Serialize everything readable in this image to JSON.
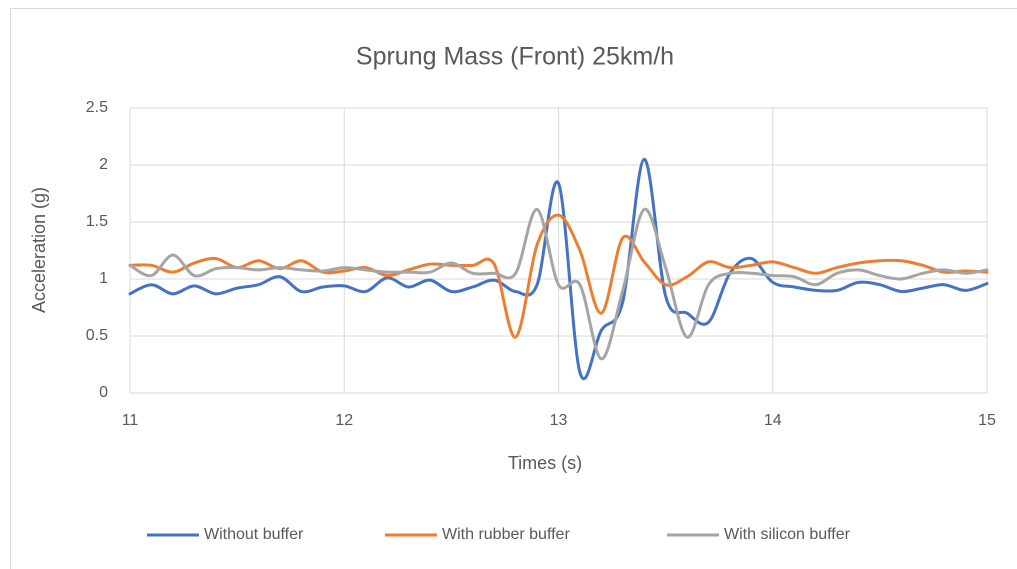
{
  "chart_data": {
    "type": "line",
    "title": "Sprung Mass (Front) 25km/h",
    "x_label": "Times (s)",
    "y_label": "Acceleration (g)",
    "x": [
      11,
      11.1,
      11.2,
      11.3,
      11.4,
      11.5,
      11.6,
      11.7,
      11.8,
      11.9,
      12,
      12.1,
      12.2,
      12.3,
      12.4,
      12.5,
      12.6,
      12.7,
      12.8,
      12.9,
      13,
      13.1,
      13.2,
      13.3,
      13.4,
      13.5,
      13.6,
      13.7,
      13.8,
      13.9,
      14,
      14.1,
      14.2,
      14.3,
      14.4,
      14.5,
      14.6,
      14.7,
      14.8,
      14.9,
      15
    ],
    "series": [
      {
        "name": "Without buffer",
        "color": "#4472c4",
        "values": [
          0.87,
          0.95,
          0.87,
          0.94,
          0.87,
          0.92,
          0.95,
          1.02,
          0.89,
          0.93,
          0.94,
          0.89,
          1.01,
          0.93,
          0.99,
          0.89,
          0.93,
          0.99,
          0.89,
          0.95,
          1.84,
          0.18,
          0.55,
          0.8,
          2.05,
          0.85,
          0.7,
          0.62,
          1.05,
          1.18,
          0.97,
          0.93,
          0.9,
          0.9,
          0.97,
          0.95,
          0.89,
          0.92,
          0.95,
          0.9,
          0.96
        ]
      },
      {
        "name": "With rubber buffer",
        "color": "#ed7d31",
        "values": [
          1.12,
          1.12,
          1.06,
          1.14,
          1.18,
          1.1,
          1.16,
          1.09,
          1.16,
          1.06,
          1.07,
          1.1,
          1.03,
          1.08,
          1.13,
          1.12,
          1.12,
          1.13,
          0.49,
          1.3,
          1.56,
          1.25,
          0.7,
          1.36,
          1.15,
          0.95,
          1.02,
          1.15,
          1.1,
          1.12,
          1.15,
          1.1,
          1.05,
          1.1,
          1.14,
          1.16,
          1.16,
          1.12,
          1.06,
          1.07,
          1.06
        ]
      },
      {
        "name": "With silicon buffer",
        "color": "#a5a5a5",
        "values": [
          1.12,
          1.03,
          1.21,
          1.03,
          1.09,
          1.1,
          1.08,
          1.1,
          1.08,
          1.07,
          1.1,
          1.08,
          1.06,
          1.06,
          1.06,
          1.14,
          1.05,
          1.05,
          1.05,
          1.61,
          0.95,
          0.95,
          0.3,
          0.9,
          1.61,
          1.1,
          0.49,
          0.95,
          1.05,
          1.05,
          1.03,
          1.02,
          0.95,
          1.05,
          1.08,
          1.03,
          1.0,
          1.05,
          1.08,
          1.05,
          1.08
        ]
      }
    ],
    "xlim": [
      11,
      15
    ],
    "xticks": [
      11,
      12,
      13,
      14,
      15
    ],
    "ylim": [
      0,
      2.5
    ],
    "yticks": [
      0,
      0.5,
      1,
      1.5,
      2,
      2.5
    ],
    "grid": true,
    "legend": "bottom"
  }
}
